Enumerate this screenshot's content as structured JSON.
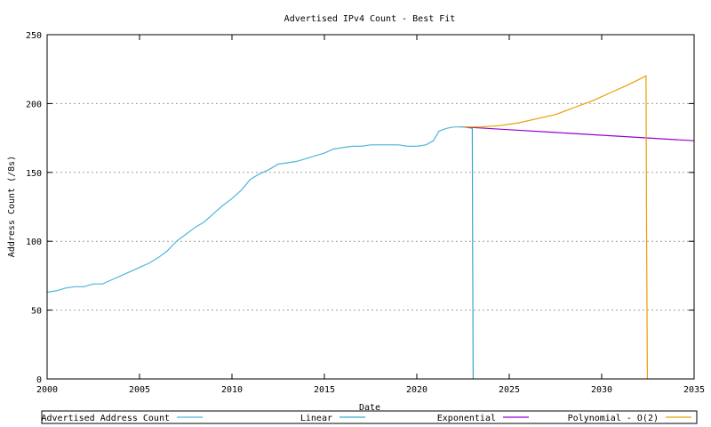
{
  "chart_data": {
    "type": "line",
    "title": "Advertised IPv4 Count - Best Fit",
    "xlabel": "Date",
    "ylabel": "Address Count (/8s)",
    "xlim": [
      2000,
      2035
    ],
    "ylim": [
      0,
      250
    ],
    "x_ticks": [
      2000,
      2005,
      2010,
      2015,
      2020,
      2025,
      2030,
      2035
    ],
    "y_ticks": [
      0,
      50,
      100,
      150,
      200,
      250
    ],
    "grid": "horizontal",
    "legend_position": "bottom",
    "series": [
      {
        "name": "Advertised Address Count",
        "color": "#4fb5dc",
        "x": [
          2000,
          2000.5,
          2001,
          2001.5,
          2002,
          2002.5,
          2003,
          2003.5,
          2004,
          2004.5,
          2005,
          2005.5,
          2006,
          2006.5,
          2007,
          2007.5,
          2008,
          2008.5,
          2009,
          2009.5,
          2010,
          2010.5,
          2011,
          2011.5,
          2012,
          2012.5,
          2013,
          2013.5,
          2014,
          2014.5,
          2015,
          2015.5,
          2016,
          2016.5,
          2017,
          2017.5,
          2018,
          2018.5,
          2019,
          2019.5,
          2020,
          2020.5,
          2020.9,
          2021.2,
          2021.6,
          2022,
          2022.3
        ],
        "y": [
          63,
          64,
          66,
          67,
          67,
          69,
          69,
          72,
          75,
          78,
          81,
          84,
          88,
          93,
          100,
          105,
          110,
          114,
          120,
          126,
          131,
          137,
          145,
          149,
          152,
          156,
          157,
          158,
          160,
          162,
          164,
          167,
          168,
          169,
          169,
          170,
          170,
          170,
          170,
          169,
          169,
          170,
          173,
          180,
          182,
          183,
          183
        ]
      },
      {
        "name": "Linear",
        "color": "#3aa6cc",
        "x": [
          2022.3,
          2022.6,
          2023.0,
          2023.02,
          2023.05
        ],
        "y": [
          183,
          183,
          182,
          95,
          0
        ]
      },
      {
        "name": "Exponential",
        "color": "#9400d3",
        "x": [
          2022.5,
          2025,
          2027.5,
          2030,
          2032.5,
          2035
        ],
        "y": [
          183,
          181,
          179,
          177,
          175,
          173
        ]
      },
      {
        "name": "Polynomial - O(2)",
        "color": "#e8a000",
        "x": [
          2022.5,
          2023.5,
          2024.5,
          2025.5,
          2026.5,
          2027.5,
          2028.5,
          2029.5,
          2030.5,
          2031.5,
          2032.4,
          2032.43,
          2032.47
        ],
        "y": [
          183,
          183,
          184,
          186,
          189,
          192,
          197,
          202,
          208,
          214,
          220,
          110,
          0
        ]
      }
    ]
  }
}
